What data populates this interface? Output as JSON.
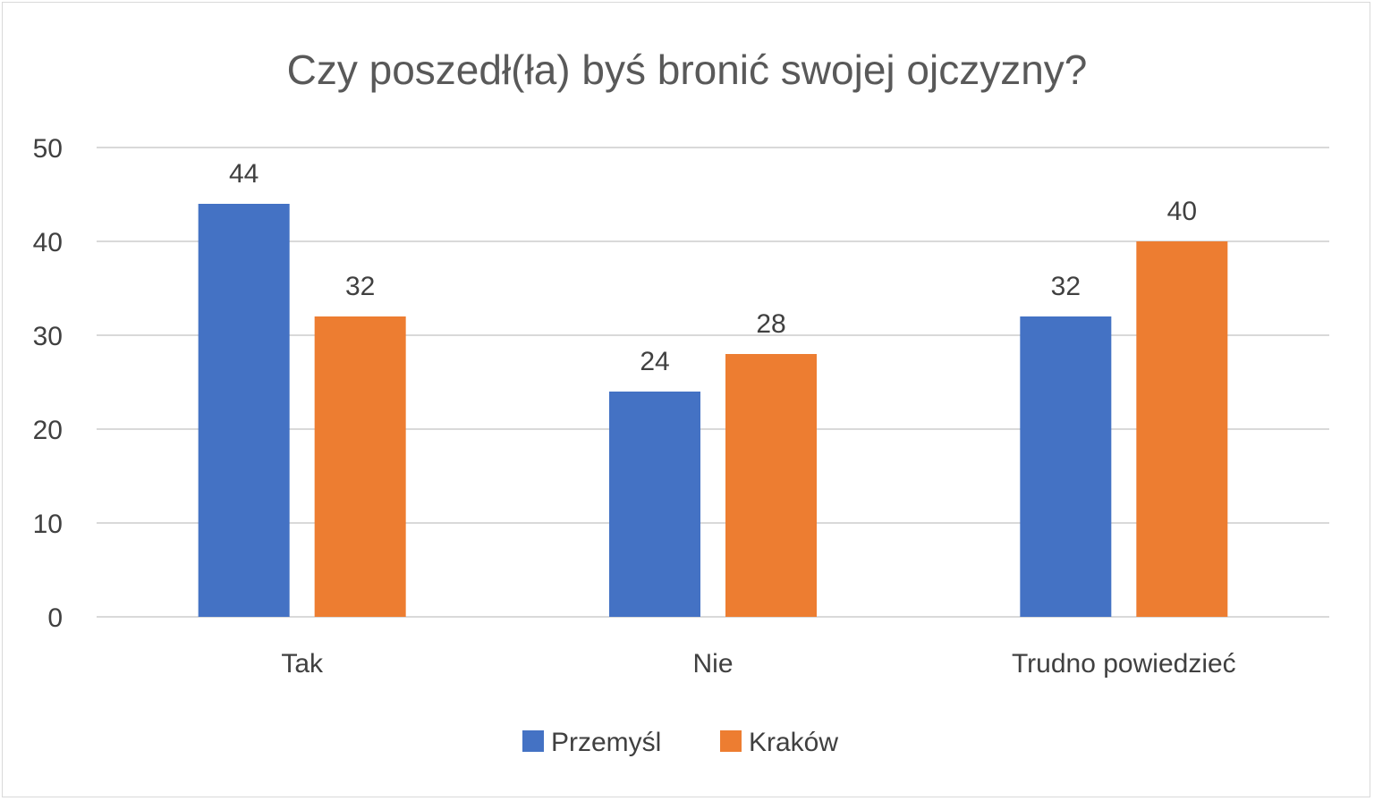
{
  "chart_data": {
    "type": "bar",
    "title": "Czy poszedł(ła) byś bronić swojej ojczyzny?",
    "xlabel": "",
    "ylabel": "",
    "categories": [
      "Tak",
      "Nie",
      "Trudno powiedzieć"
    ],
    "series": [
      {
        "name": "Przemyśl",
        "values": [
          44,
          24,
          32
        ],
        "color": "#4472c4"
      },
      {
        "name": "Kraków",
        "values": [
          32,
          28,
          40
        ],
        "color": "#ed7d31"
      }
    ],
    "ylim": [
      0,
      50
    ],
    "yticks": [
      "0",
      "10",
      "20",
      "30",
      "40",
      "50"
    ],
    "grid": true,
    "legend_position": "bottom",
    "data_labels": true
  }
}
